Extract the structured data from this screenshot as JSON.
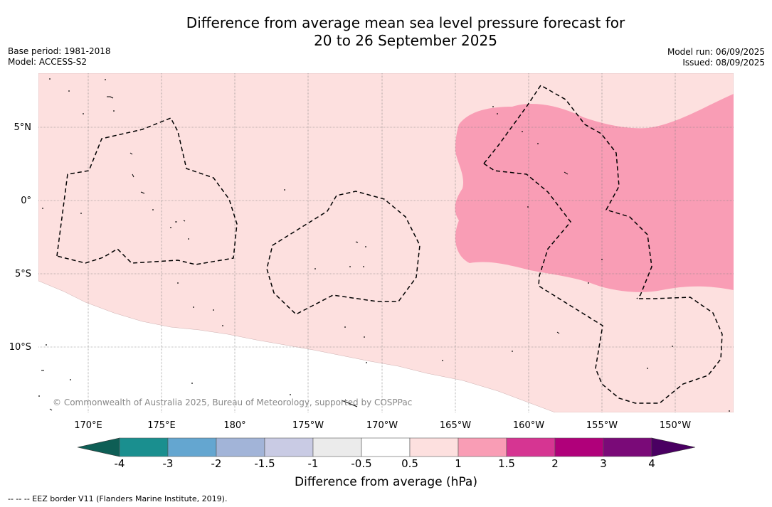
{
  "title_line1": "Difference from average mean sea level pressure forecast for",
  "title_line2": "20 to 26 September 2025",
  "base_period": "Base period: 1981-2018",
  "model": "Model: ACCESS-S2",
  "model_run": "Model run: 06/09/2025",
  "issued": "Issued: 08/09/2025",
  "copyright": "© Commonwealth of Australia 2025, Bureau of Meteorology, supported by COSPPac",
  "lat_labels": [
    "5°N",
    "0°",
    "5°S",
    "10°S"
  ],
  "lon_labels": [
    "170°E",
    "175°E",
    "180°",
    "175°W",
    "170°W",
    "165°W",
    "160°W",
    "155°W",
    "150°W"
  ],
  "colorbar": {
    "ticks": [
      "-4",
      "-3",
      "-2",
      "-1.5",
      "-1",
      "-0.5",
      "0.5",
      "1",
      "1.5",
      "2",
      "3",
      "4"
    ],
    "colors": [
      "#1a8f8f",
      "#64a6d0",
      "#a2b4d8",
      "#c9cbe4",
      "#ebebeb",
      "#ffffff",
      "#fde0df",
      "#f99db5",
      "#d63592",
      "#b0007a",
      "#7a0a78"
    ],
    "min_color": "#0e5e55",
    "max_color": "#4a0062",
    "label": "Difference from average (hPa)"
  },
  "footer": "--  --  -- EEZ border V11 (Flanders Marine Institute, 2019).",
  "field_colors": {
    "band_0_5_1": "#fde0df",
    "band_1_1_5": "#f99db5"
  }
}
